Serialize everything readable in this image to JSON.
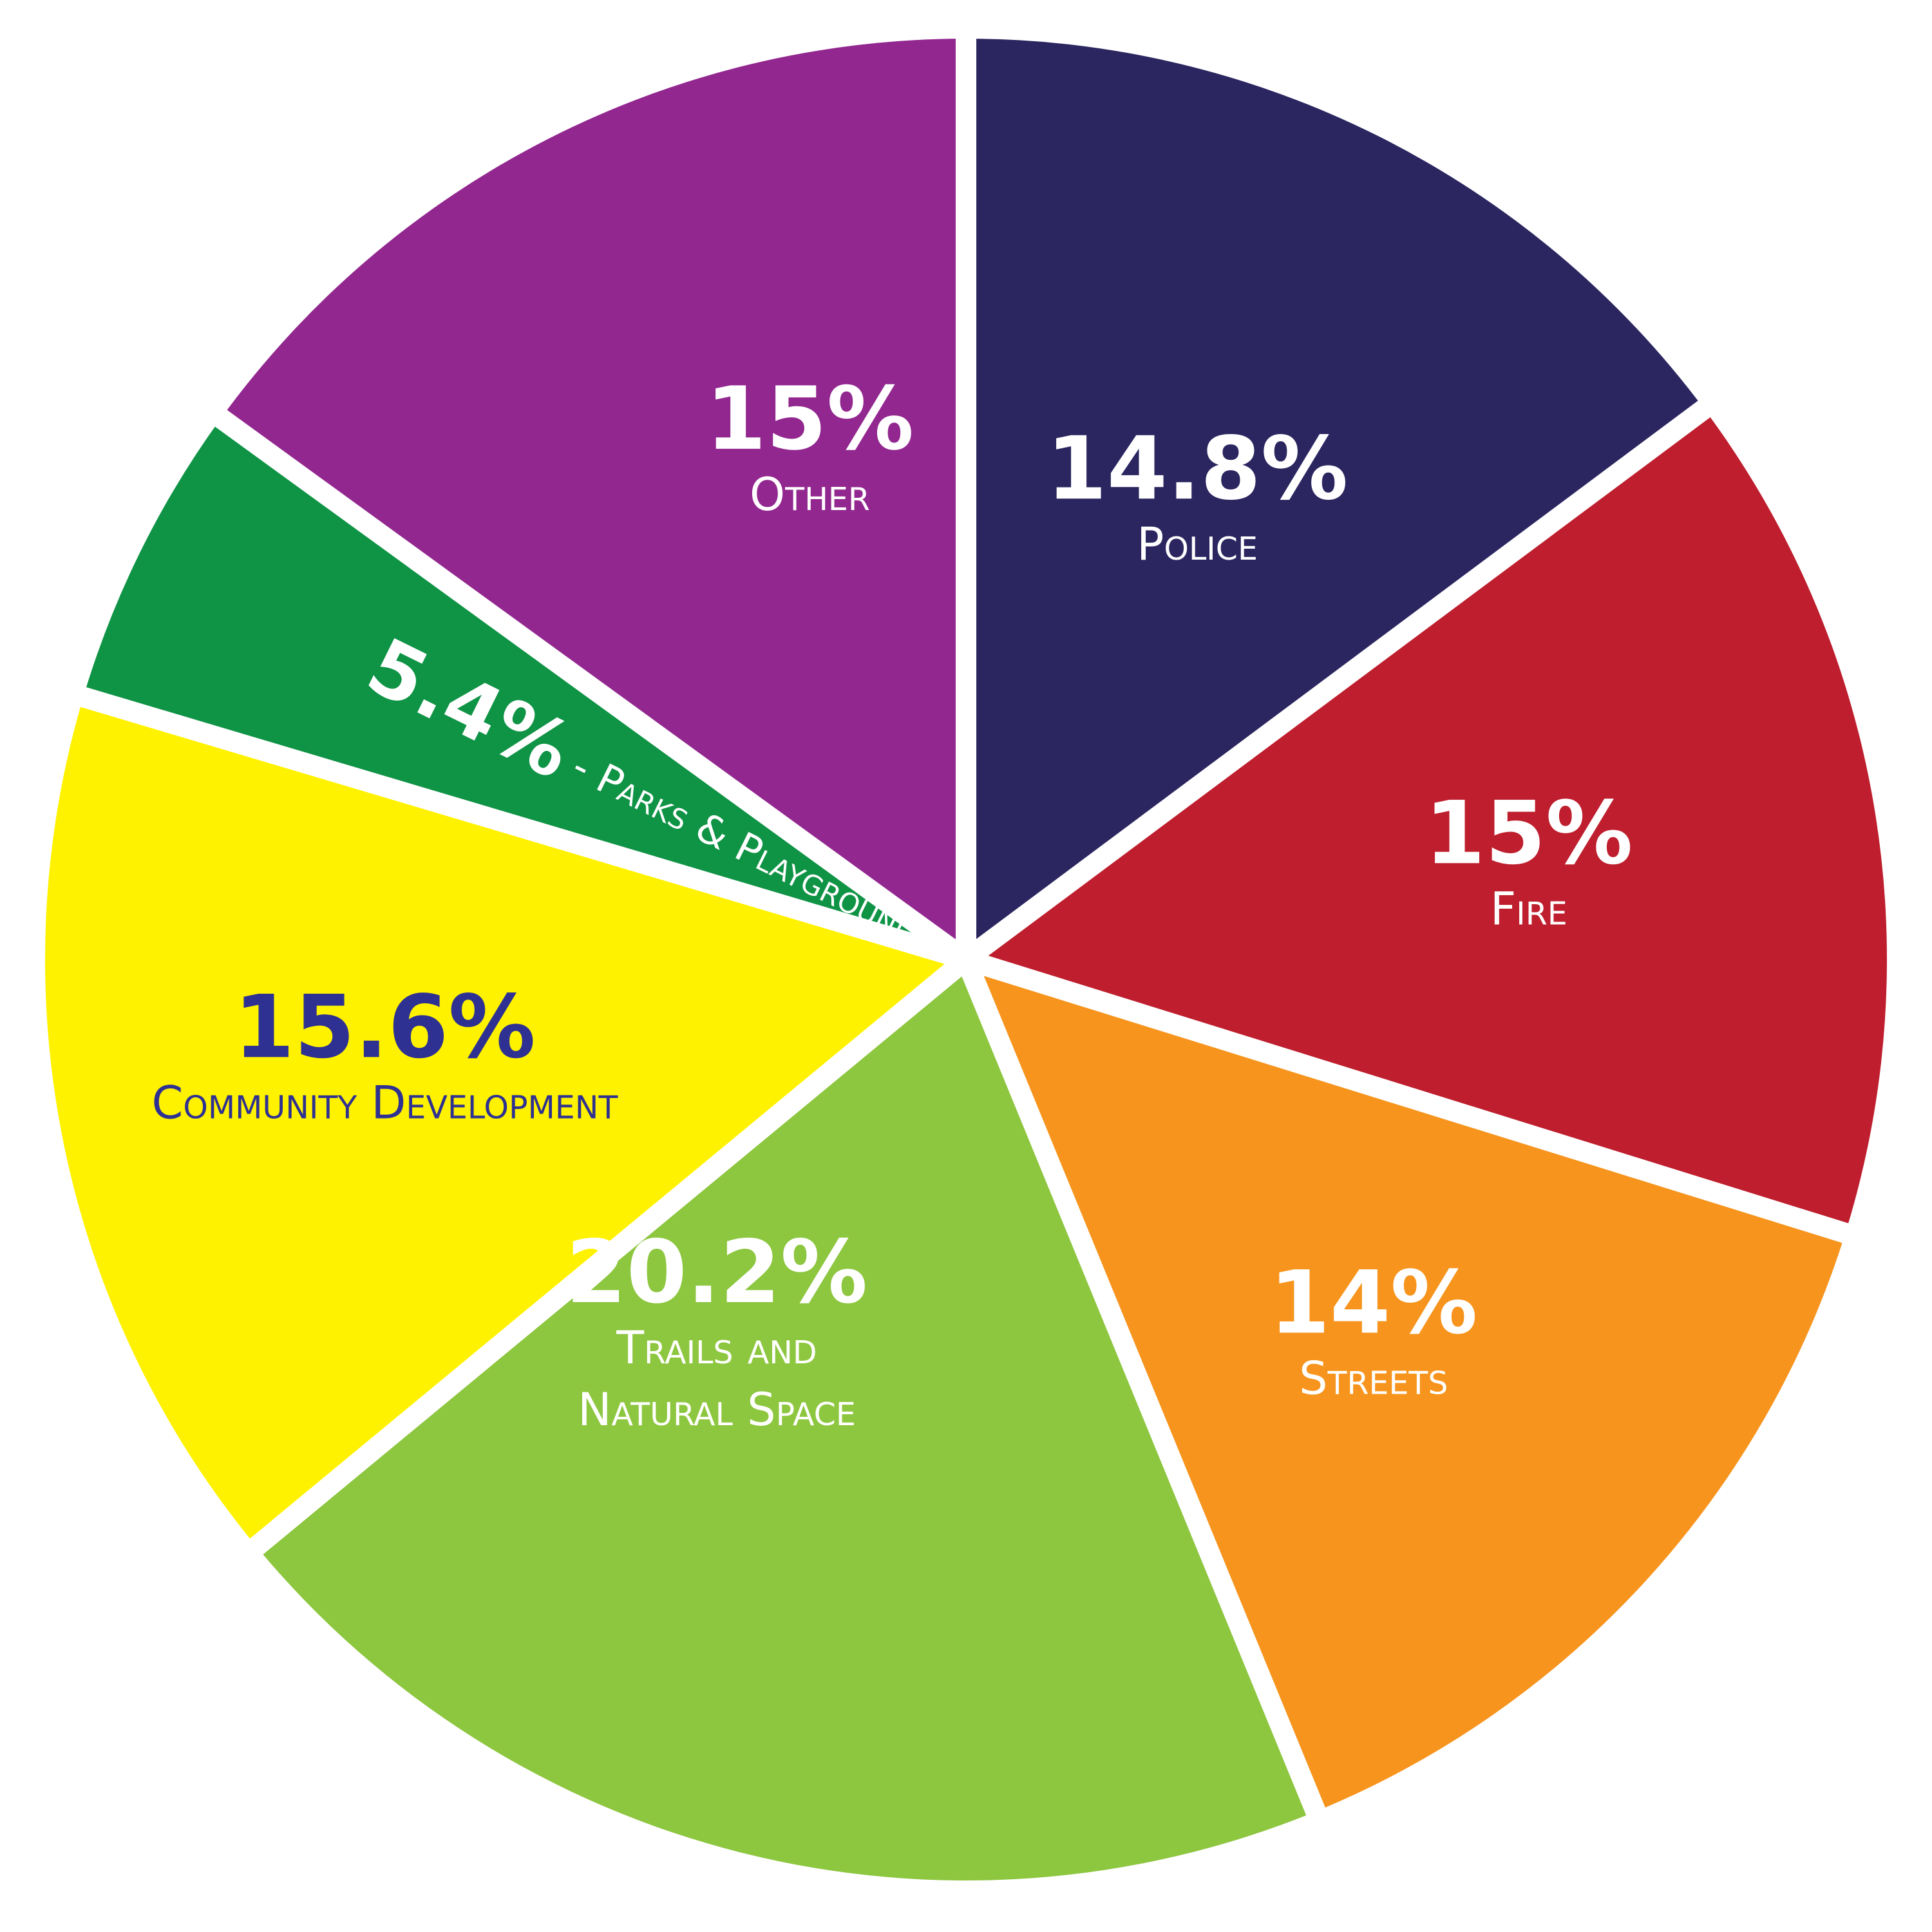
{
  "chart_data": {
    "type": "pie",
    "title": "",
    "start_angle_deg": 0,
    "direction": "clockwise",
    "slices": [
      {
        "label": "Police",
        "value": 14.8,
        "value_label": "14.8%",
        "name_lines": [
          "Police"
        ],
        "color": "#2B2660",
        "text_color": "#FFFFFF"
      },
      {
        "label": "Fire",
        "value": 15,
        "value_label": "15%",
        "name_lines": [
          "Fire"
        ],
        "color": "#BE1E2D",
        "text_color": "#FFFFFF"
      },
      {
        "label": "Streets",
        "value": 14,
        "value_label": "14%",
        "name_lines": [
          "Streets"
        ],
        "color": "#F7941D",
        "text_color": "#FFFFFF"
      },
      {
        "label": "Trails and Natural Space",
        "value": 20.2,
        "value_label": "20.2%",
        "name_lines": [
          "Trails and",
          "Natural Space"
        ],
        "color": "#8DC63F",
        "text_color": "#FFFFFF"
      },
      {
        "label": "Community Development",
        "value": 15.6,
        "value_label": "15.6%",
        "name_lines": [
          "Community Development"
        ],
        "color": "#FFF200",
        "text_color": "#2E3192"
      },
      {
        "label": "Parks & Playgrounds",
        "value": 5.4,
        "value_label": "5.4%",
        "name_lines": [
          "- Parks & Playgrounds"
        ],
        "color": "#0F9345",
        "text_color": "#FFFFFF"
      },
      {
        "label": "Other",
        "value": 15,
        "value_label": "15%",
        "name_lines": [
          "Other"
        ],
        "color": "#92278F",
        "text_color": "#FFFFFF"
      }
    ],
    "slice_separator_color": "#FFFFFF"
  }
}
